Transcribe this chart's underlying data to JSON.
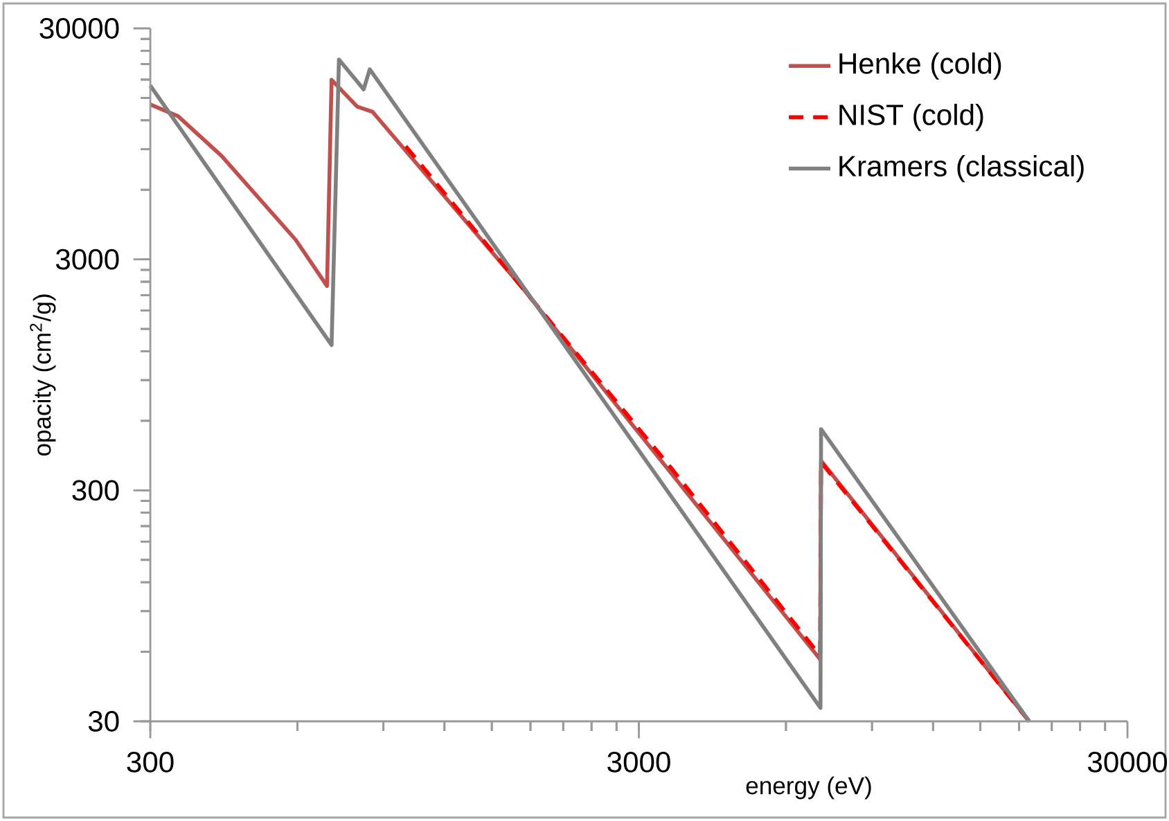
{
  "chart_data": {
    "type": "line",
    "xlabel": "energy (eV)",
    "ylabel": "opacity (cm$^{2}$/g)",
    "log": "xy",
    "xlim": [
      300,
      30000
    ],
    "ylim": [
      30,
      30000
    ],
    "xticks": [
      300,
      3000,
      30000
    ],
    "yticks": [
      30,
      300,
      3000,
      30000
    ],
    "legend": "top right",
    "grid": false,
    "series": [
      {
        "name": "Henke (cold)",
        "color": "#c0504d",
        "line_style": "solid",
        "x": [
          300,
          342,
          420,
          595,
          690,
          705,
          796,
          855,
          1726,
          3493,
          7050,
          7080,
          18880
        ],
        "values": [
          14060,
          12500,
          8400,
          3650,
          2300,
          17950,
          13740,
          13060,
          2281,
          356,
          55.6,
          403,
          30
        ]
      },
      {
        "name": "NIST (cold)",
        "color": "#ff0000",
        "line_style": "dashed",
        "x": [
          1000,
          1726,
          3493,
          7050,
          7080,
          18880
        ],
        "values": [
          9270,
          2281,
          375,
          57.7,
          397,
          30
        ]
      },
      {
        "name": "Kramers (classical)",
        "color": "#808080",
        "line_style": "solid",
        "x": [
          300,
          705,
          730,
          820,
          844,
          7060,
          7080,
          18880
        ],
        "values": [
          16950,
          1277,
          21990,
          16330,
          19950,
          34.3,
          552,
          30
        ]
      }
    ]
  }
}
